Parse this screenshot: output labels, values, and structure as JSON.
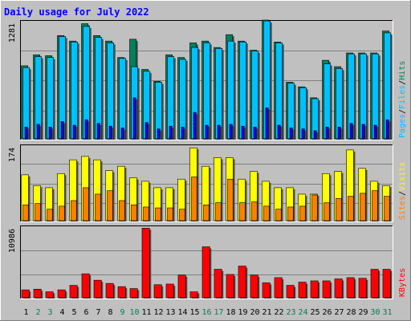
{
  "chart_data": {
    "title": "Daily usage for July 2022",
    "categories": [
      "1",
      "2",
      "3",
      "4",
      "5",
      "6",
      "7",
      "8",
      "9",
      "10",
      "11",
      "12",
      "13",
      "14",
      "15",
      "16",
      "17",
      "18",
      "19",
      "20",
      "21",
      "22",
      "23",
      "24",
      "25",
      "26",
      "27",
      "28",
      "29",
      "30",
      "31"
    ],
    "weekend_days": [
      "2",
      "3",
      "9",
      "10",
      "16",
      "17",
      "23",
      "24",
      "30",
      "31"
    ],
    "panels": [
      {
        "type": "bar",
        "max_label": "1281",
        "ymax": 1281,
        "legend": [
          "Pages",
          "/",
          "Files",
          "/",
          "Hits"
        ],
        "series": [
          {
            "name": "Hits",
            "color": "#00805c",
            "values": [
              790,
              910,
              900,
              1120,
              1060,
              1250,
              1120,
              1060,
              880,
              1080,
              750,
              620,
              910,
              880,
              1040,
              1060,
              990,
              1130,
              1060,
              960,
              1290,
              1050,
              610,
              560,
              440,
              850,
              780,
              930,
              930,
              930,
              1170
            ]
          },
          {
            "name": "Files",
            "color": "#00c0ff",
            "values": [
              770,
              890,
              880,
              1110,
              1050,
              1220,
              1100,
              1040,
              870,
              780,
              730,
              610,
              890,
              860,
              990,
              1040,
              980,
              1060,
              1050,
              950,
              1280,
              1040,
              600,
              550,
              430,
              810,
              760,
              920,
              920,
              920,
              1150
            ]
          },
          {
            "name": "Pages",
            "color": "#0000ff",
            "values": [
              120,
              150,
              120,
              180,
              140,
              200,
              160,
              130,
              110,
              440,
              170,
              100,
              130,
              120,
              280,
              140,
              140,
              150,
              130,
              120,
              330,
              140,
              110,
              100,
              80,
              120,
              120,
              160,
              150,
              140,
              200
            ]
          }
        ]
      },
      {
        "type": "bar",
        "max_label": "174",
        "ymax": 174,
        "legend": [
          "Sites",
          "/",
          "Visits"
        ],
        "series": [
          {
            "name": "Visits",
            "color": "#ffff00",
            "values": [
              105,
              80,
              75,
              108,
              140,
              148,
              140,
              115,
              125,
              98,
              90,
              75,
              75,
              95,
              168,
              125,
              145,
              145,
              95,
              113,
              90,
              75,
              75,
              60,
              60,
              108,
              113,
              163,
              120,
              90,
              80
            ]
          },
          {
            "name": "Sites",
            "color": "#ff8000",
            "values": [
              35,
              38,
              25,
              32,
              45,
              75,
              60,
              68,
              45,
              35,
              30,
              28,
              28,
              25,
              100,
              35,
              40,
              95,
              40,
              42,
              32,
              25,
              30,
              32,
              58,
              40,
              50,
              55,
              62,
              68,
              55
            ]
          }
        ]
      },
      {
        "type": "bar",
        "max_label": "10986",
        "ymax": 10986,
        "legend": [
          "KBytes"
        ],
        "series": [
          {
            "name": "KBytes",
            "color": "#ff0000",
            "values": [
              1100,
              1200,
              800,
              1100,
              1800,
              3600,
              2600,
              2100,
              1600,
              1300,
              10700,
              1900,
              2000,
              3400,
              800,
              7800,
              4300,
              3500,
              4800,
              3400,
              2200,
              3000,
              1800,
              2300,
              2500,
              2500,
              2800,
              3000,
              2900,
              4300,
              4300
            ]
          }
        ]
      }
    ]
  },
  "colors": {
    "background": "#c0c0c0",
    "plot": "#c0c0c0",
    "grid": "#808080",
    "title": "#0000ff",
    "weekday_label": "#000000",
    "weekend_label": "#00805c",
    "legend_hits": "#00805c",
    "legend_files": "#00c0ff",
    "legend_pages": "#00c0ff",
    "legend_visits": "#ffff00",
    "legend_sites": "#ff8000",
    "legend_kbytes": "#ff0000"
  }
}
